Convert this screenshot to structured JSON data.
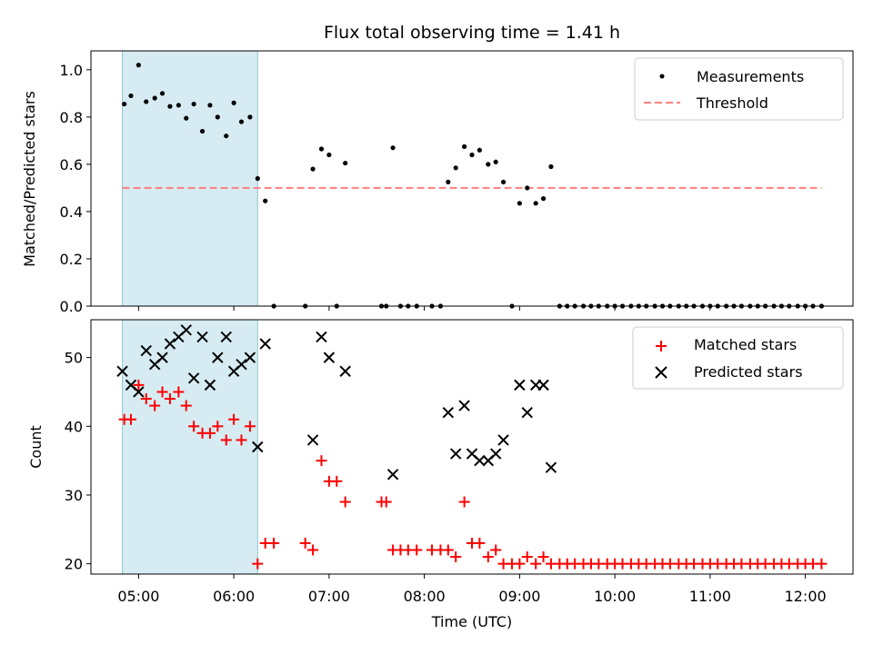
{
  "chart_data": [
    {
      "type": "scatter",
      "title": "Flux total observing time = 1.41 h",
      "xlabel": "",
      "ylabel": "Matched/Predicted stars",
      "ylim": [
        0,
        1.08
      ],
      "yticks": [
        "0.0",
        "0.2",
        "0.4",
        "0.6",
        "0.8",
        "1.0"
      ],
      "x_unit": "hours UTC",
      "highlight_span": [
        4.83,
        6.25
      ],
      "grid": false,
      "legend_placement": "upper-right",
      "series": [
        {
          "name": "Measurements",
          "marker": "dot",
          "color": "#000000",
          "x": [
            4.85,
            4.92,
            5.0,
            5.08,
            5.17,
            5.25,
            5.33,
            5.42,
            5.5,
            5.58,
            5.67,
            5.75,
            5.83,
            5.92,
            6.0,
            6.08,
            6.17,
            6.25,
            6.33,
            6.42,
            6.75,
            6.83,
            6.92,
            7.0,
            7.08,
            7.17,
            7.55,
            7.6,
            7.67,
            7.75,
            7.83,
            7.92,
            8.08,
            8.17,
            8.25,
            8.33,
            8.42,
            8.5,
            8.58,
            8.67,
            8.75,
            8.83,
            8.92,
            9.0,
            9.08,
            9.17,
            9.25,
            9.33,
            9.42,
            9.5,
            9.58,
            9.67,
            9.75,
            9.83,
            9.92,
            10.0,
            10.08,
            10.17,
            10.25,
            10.33,
            10.42,
            10.5,
            10.58,
            10.67,
            10.75,
            10.83,
            10.92,
            11.0,
            11.08,
            11.17,
            11.25,
            11.33,
            11.42,
            11.5,
            11.58,
            11.67,
            11.75,
            11.83,
            11.92,
            12.0,
            12.08,
            12.17
          ],
          "y": [
            0.855,
            0.89,
            1.02,
            0.865,
            0.88,
            0.9,
            0.845,
            0.85,
            0.795,
            0.855,
            0.74,
            0.85,
            0.8,
            0.72,
            0.86,
            0.78,
            0.8,
            0.54,
            0.445,
            0.0,
            0.0,
            0.58,
            0.665,
            0.64,
            0.0,
            0.605,
            0.0,
            0.0,
            0.67,
            0.0,
            0.0,
            0.0,
            0.0,
            0.0,
            0.525,
            0.585,
            0.675,
            0.64,
            0.66,
            0.6,
            0.61,
            0.525,
            0.0,
            0.435,
            0.5,
            0.435,
            0.455,
            0.59,
            0.0,
            0.0,
            0.0,
            0.0,
            0.0,
            0.0,
            0.0,
            0.0,
            0.0,
            0.0,
            0.0,
            0.0,
            0.0,
            0.0,
            0.0,
            0.0,
            0.0,
            0.0,
            0.0,
            0.0,
            0.0,
            0.0,
            0.0,
            0.0,
            0.0,
            0.0,
            0.0,
            0.0,
            0.0,
            0.0,
            0.0,
            0.0,
            0.0,
            0.0
          ]
        },
        {
          "name": "Threshold",
          "marker": "dashed-line",
          "color": "#ff7f7f",
          "x": [
            4.83,
            12.17
          ],
          "y": [
            0.5,
            0.5
          ]
        }
      ]
    },
    {
      "type": "scatter",
      "title": "",
      "xlabel": "Time (UTC)",
      "ylabel": "Count",
      "ylim": [
        18.5,
        55.5
      ],
      "yticks": [
        "20",
        "30",
        "40",
        "50"
      ],
      "xticks": [
        "05:00",
        "06:00",
        "07:00",
        "08:00",
        "09:00",
        "10:00",
        "11:00",
        "12:00"
      ],
      "xlim": [
        4.5,
        12.5
      ],
      "x_unit": "hours UTC",
      "highlight_span": [
        4.83,
        6.25
      ],
      "grid": false,
      "legend_placement": "upper-right",
      "series": [
        {
          "name": "Matched stars",
          "marker": "plus",
          "color": "#ff0000",
          "x": [
            4.85,
            4.92,
            5.0,
            5.08,
            5.17,
            5.25,
            5.33,
            5.42,
            5.5,
            5.58,
            5.67,
            5.75,
            5.83,
            5.92,
            6.0,
            6.08,
            6.17,
            6.25,
            6.33,
            6.42,
            6.75,
            6.83,
            6.92,
            7.0,
            7.08,
            7.17,
            7.55,
            7.6,
            7.67,
            7.75,
            7.83,
            7.92,
            8.08,
            8.17,
            8.25,
            8.33,
            8.42,
            8.5,
            8.58,
            8.67,
            8.75,
            8.83,
            8.92,
            9.0,
            9.08,
            9.17,
            9.25,
            9.33,
            9.42,
            9.5,
            9.58,
            9.67,
            9.75,
            9.83,
            9.92,
            10.0,
            10.08,
            10.17,
            10.25,
            10.33,
            10.42,
            10.5,
            10.58,
            10.67,
            10.75,
            10.83,
            10.92,
            11.0,
            11.08,
            11.17,
            11.25,
            11.33,
            11.42,
            11.5,
            11.58,
            11.67,
            11.75,
            11.83,
            11.92,
            12.0,
            12.08,
            12.17
          ],
          "y": [
            41,
            41,
            46,
            44,
            43,
            45,
            44,
            45,
            43,
            40,
            39,
            39,
            40,
            38,
            41,
            38,
            40,
            20,
            23,
            23,
            23,
            22,
            35,
            32,
            32,
            29,
            29,
            29,
            22,
            22,
            22,
            22,
            22,
            22,
            22,
            21,
            29,
            23,
            23,
            21,
            22,
            20,
            20,
            20,
            21,
            20,
            21,
            20,
            20,
            20,
            20,
            20,
            20,
            20,
            20,
            20,
            20,
            20,
            20,
            20,
            20,
            20,
            20,
            20,
            20,
            20,
            20,
            20,
            20,
            20,
            20,
            20,
            20,
            20,
            20,
            20,
            20,
            20,
            20,
            20,
            20,
            20
          ]
        },
        {
          "name": "Predicted stars",
          "marker": "x",
          "color": "#000000",
          "x": [
            4.83,
            4.92,
            5.0,
            5.08,
            5.17,
            5.25,
            5.33,
            5.42,
            5.5,
            5.58,
            5.67,
            5.75,
            5.83,
            5.92,
            6.0,
            6.08,
            6.17,
            6.25,
            6.33,
            6.83,
            6.92,
            7.0,
            7.17,
            7.67,
            8.25,
            8.33,
            8.42,
            8.5,
            8.58,
            8.67,
            8.75,
            8.83,
            9.0,
            9.08,
            9.17,
            9.25,
            9.33
          ],
          "y": [
            48,
            46,
            45,
            51,
            49,
            50,
            52,
            53,
            54,
            47,
            53,
            46,
            50,
            53,
            48,
            49,
            50,
            37,
            52,
            38,
            53,
            50,
            48,
            33,
            42,
            36,
            43,
            36,
            35,
            35,
            36,
            38,
            46,
            42,
            46,
            46,
            34
          ]
        }
      ]
    }
  ]
}
